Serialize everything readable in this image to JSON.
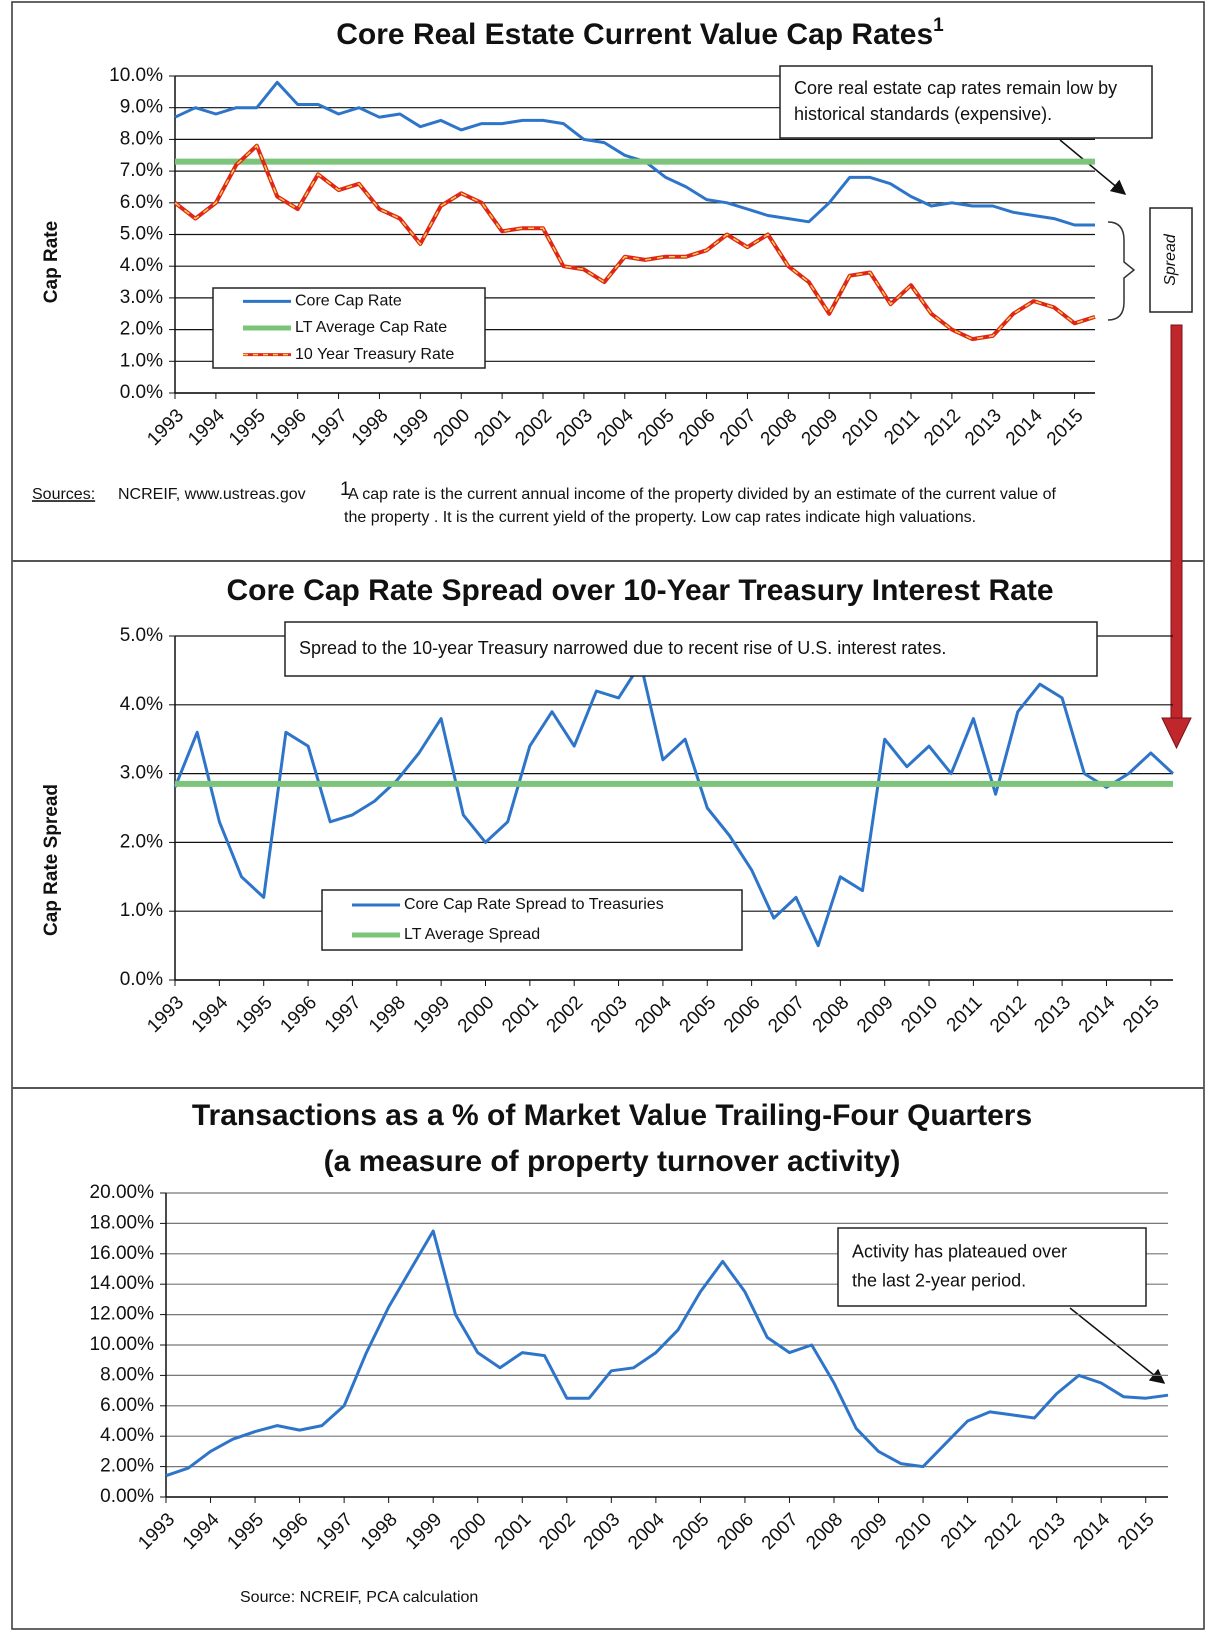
{
  "chart_data": [
    {
      "type": "line",
      "title": "Core Real Estate Current Value Cap Rates",
      "title_superscript": "1",
      "ylabel": "Cap Rate",
      "categories": [
        "1993",
        null,
        "1994",
        null,
        "1995",
        null,
        "1996",
        null,
        "1997",
        null,
        "1998",
        null,
        "1999",
        null,
        "2000",
        null,
        "2001",
        null,
        "2002",
        null,
        "2003",
        null,
        "2004",
        null,
        "2005",
        null,
        "2006",
        null,
        "2007",
        null,
        "2008",
        null,
        "2009",
        null,
        "2010",
        null,
        "2011",
        null,
        "2012",
        null,
        "2013",
        null,
        "2014",
        null,
        "2015",
        null
      ],
      "series": [
        {
          "name": "Core Cap Rate",
          "color": "#2e75c9",
          "values": [
            8.7,
            9.0,
            8.8,
            9.0,
            9.0,
            9.8,
            9.1,
            9.1,
            8.8,
            9.0,
            8.7,
            8.8,
            8.4,
            8.6,
            8.3,
            8.5,
            8.5,
            8.6,
            8.6,
            8.5,
            8.0,
            7.9,
            7.5,
            7.3,
            6.8,
            6.5,
            6.1,
            6.0,
            5.8,
            5.6,
            5.5,
            5.4,
            6.0,
            6.8,
            6.8,
            6.6,
            6.2,
            5.9,
            6.0,
            5.9,
            5.9,
            5.7,
            5.6,
            5.5,
            5.3,
            5.3
          ]
        },
        {
          "name": "LT Average Cap Rate",
          "color": "#7cc47a",
          "value": 7.3
        },
        {
          "name": "10 Year Treasury Rate",
          "color": "#e0261b",
          "dash_color": "#f2d24a",
          "values": [
            6.0,
            5.5,
            6.0,
            7.2,
            7.8,
            6.2,
            5.8,
            6.9,
            6.4,
            6.6,
            5.8,
            5.5,
            4.7,
            5.9,
            6.3,
            6.0,
            5.1,
            5.2,
            5.2,
            4.0,
            3.9,
            3.5,
            4.3,
            4.2,
            4.3,
            4.3,
            4.5,
            5.0,
            4.6,
            5.0,
            4.0,
            3.5,
            2.5,
            3.7,
            3.8,
            2.8,
            3.4,
            2.5,
            2.0,
            1.7,
            1.8,
            2.5,
            2.9,
            2.7,
            2.2,
            2.4
          ]
        }
      ],
      "ylim": [
        0,
        10
      ],
      "yticks": [
        {
          "value": 0,
          "label": "0.0%"
        },
        {
          "value": 1,
          "label": "1.0%"
        },
        {
          "value": 2,
          "label": "2.0%"
        },
        {
          "value": 3,
          "label": "3.0%"
        },
        {
          "value": 4,
          "label": "4.0%"
        },
        {
          "value": 5,
          "label": "5.0%"
        },
        {
          "value": 6,
          "label": "6.0%"
        },
        {
          "value": 7,
          "label": "7.0%"
        },
        {
          "value": 8,
          "label": "8.0%"
        },
        {
          "value": 9,
          "label": "9.0%"
        },
        {
          "value": 10,
          "label": "10.0%"
        }
      ],
      "grid": true,
      "legend": "lower left",
      "annotation": [
        "Core real estate cap rates remain low by",
        "historical standards (expensive)."
      ],
      "spread_label": "Spread",
      "sources_label": "Sources:",
      "sources": "NCREIF, www.ustreas.gov",
      "footnote_marker": "1",
      "footnote": [
        "A cap rate is the current annual income of the property divided by an estimate of the current value of",
        "the property . It is the current yield of the property. Low cap rates indicate high valuations."
      ]
    },
    {
      "type": "line",
      "title": "Core Cap Rate Spread over 10-Year Treasury Interest Rate",
      "ylabel": "Cap Rate Spread",
      "categories": [
        "1993",
        null,
        "1994",
        null,
        "1995",
        null,
        "1996",
        null,
        "1997",
        null,
        "1998",
        null,
        "1999",
        null,
        "2000",
        null,
        "2001",
        null,
        "2002",
        null,
        "2003",
        null,
        "2004",
        null,
        "2005",
        null,
        "2006",
        null,
        "2007",
        null,
        "2008",
        null,
        "2009",
        null,
        "2010",
        null,
        "2011",
        null,
        "2012",
        null,
        "2013",
        null,
        "2014",
        null,
        "2015",
        null
      ],
      "series": [
        {
          "name": "Core Cap Rate Spread to Treasuries",
          "color": "#2e75c9",
          "values": [
            2.8,
            3.6,
            2.3,
            1.5,
            1.2,
            3.6,
            3.4,
            2.3,
            2.4,
            2.6,
            2.9,
            3.3,
            3.8,
            2.4,
            2.0,
            2.3,
            3.4,
            3.9,
            3.4,
            4.2,
            4.1,
            4.6,
            3.2,
            3.5,
            2.5,
            2.1,
            1.6,
            0.9,
            1.2,
            0.5,
            1.5,
            1.3,
            3.5,
            3.1,
            3.4,
            3.0,
            3.8,
            2.7,
            3.9,
            4.3,
            4.1,
            3.0,
            2.8,
            3.0,
            3.3,
            3.0
          ]
        },
        {
          "name": "LT Average Spread",
          "color": "#7cc47a",
          "value": 2.85
        }
      ],
      "ylim": [
        0,
        5
      ],
      "yticks": [
        {
          "value": 0,
          "label": "0.0%"
        },
        {
          "value": 1,
          "label": "1.0%"
        },
        {
          "value": 2,
          "label": "2.0%"
        },
        {
          "value": 3,
          "label": "3.0%"
        },
        {
          "value": 4,
          "label": "4.0%"
        },
        {
          "value": 5,
          "label": "5.0%"
        }
      ],
      "grid": true,
      "legend": "lower center",
      "annotation": [
        "Spread to the 10-year Treasury narrowed due to recent rise of U.S. interest rates."
      ]
    },
    {
      "type": "line",
      "title": "Transactions as a % of Market Value Trailing-Four Quarters",
      "subtitle": "(a measure of property turnover activity)",
      "categories": [
        "1993",
        null,
        "1994",
        null,
        "1995",
        null,
        "1996",
        null,
        "1997",
        null,
        "1998",
        null,
        "1999",
        null,
        "2000",
        null,
        "2001",
        null,
        "2002",
        null,
        "2003",
        null,
        "2004",
        null,
        "2005",
        null,
        "2006",
        null,
        "2007",
        null,
        "2008",
        null,
        "2009",
        null,
        "2010",
        null,
        "2011",
        null,
        "2012",
        null,
        "2013",
        null,
        "2014",
        null,
        "2015",
        null
      ],
      "series": [
        {
          "color": "#2e75c9",
          "values": [
            1.4,
            1.9,
            3.0,
            3.8,
            4.3,
            4.7,
            4.4,
            4.7,
            6.0,
            9.5,
            12.5,
            15.0,
            17.5,
            12.0,
            9.5,
            8.5,
            9.5,
            9.3,
            6.5,
            6.5,
            8.3,
            8.5,
            9.5,
            11.0,
            13.5,
            15.5,
            13.5,
            10.5,
            9.5,
            10.0,
            7.5,
            4.5,
            3.0,
            2.2,
            2.0,
            3.5,
            5.0,
            5.6,
            5.4,
            5.2,
            6.8,
            8.0,
            7.5,
            6.6,
            6.5,
            6.7
          ]
        }
      ],
      "ylim": [
        0,
        20
      ],
      "yticks": [
        {
          "value": 0,
          "label": "0.00%"
        },
        {
          "value": 2,
          "label": "2.00%"
        },
        {
          "value": 4,
          "label": "4.00%"
        },
        {
          "value": 6,
          "label": "6.00%"
        },
        {
          "value": 8,
          "label": "8.00%"
        },
        {
          "value": 10,
          "label": "10.00%"
        },
        {
          "value": 12,
          "label": "12.00%"
        },
        {
          "value": 14,
          "label": "14.00%"
        },
        {
          "value": 16,
          "label": "16.00%"
        },
        {
          "value": 18,
          "label": "18.00%"
        },
        {
          "value": 20,
          "label": "20.00%"
        }
      ],
      "grid": true,
      "annotation": [
        "Activity has plateaued over",
        "the last 2-year period."
      ],
      "source": "Source:  NCREIF, PCA calculation"
    }
  ]
}
